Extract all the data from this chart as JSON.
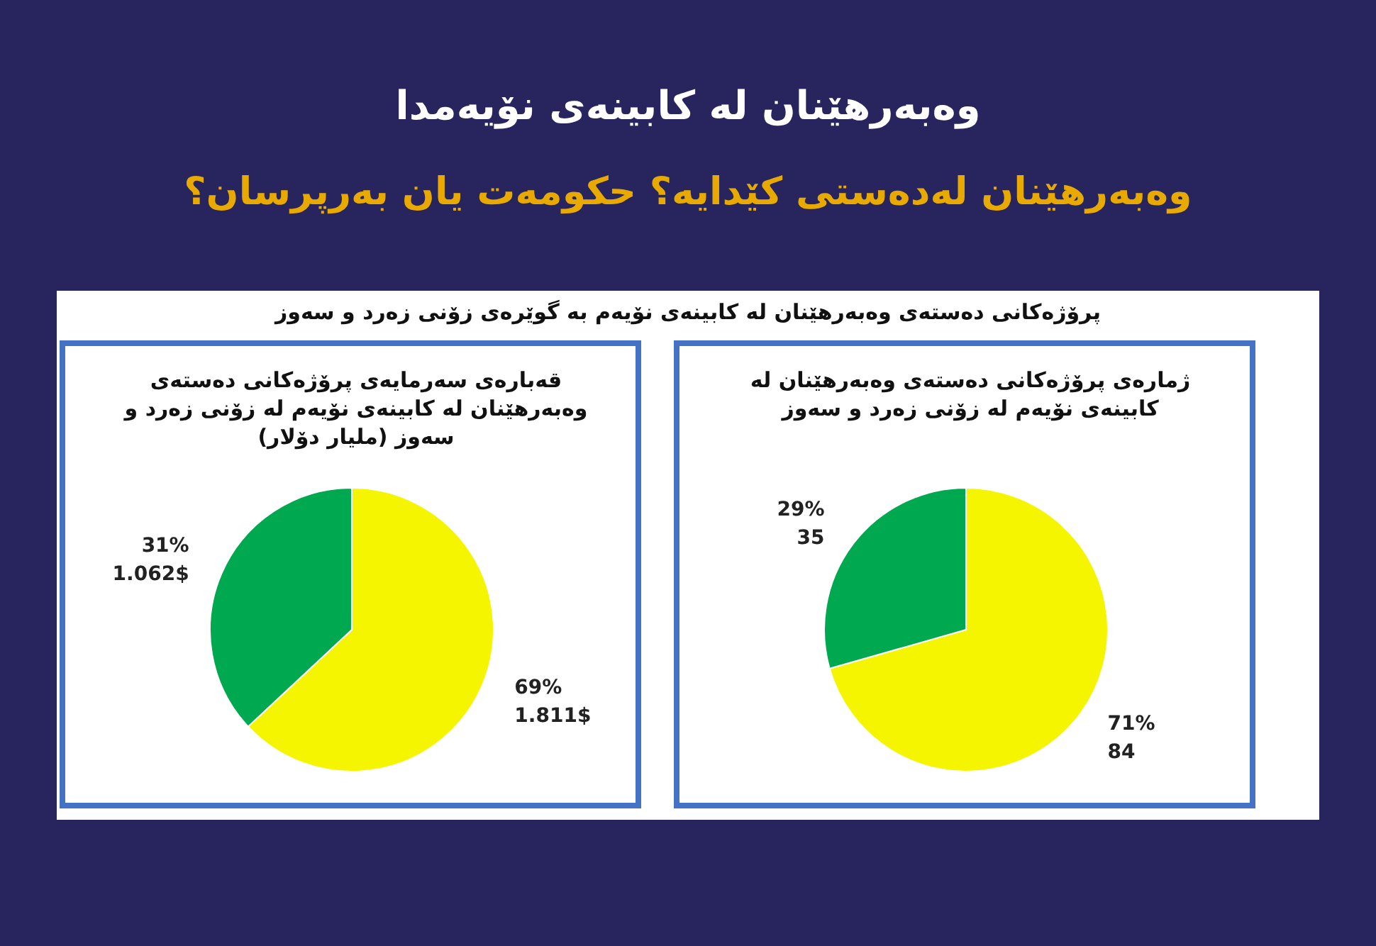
{
  "chart_data": [
    {
      "type": "other",
      "title": "وەبەرهێنان لە کابینەی نۆیەمدا",
      "subtitle": "وەبەرهێنان لەدەستی کێدایە؟ حکومەت یان بەرپرسان؟",
      "annotations": [
        "پرۆژەکانی دەستەی وەبەرهێنان لە کابینەی نۆیەم بە گوێرەی زۆنی زەرد و سەوز"
      ]
    },
    {
      "type": "pie",
      "title": "ژمارەی پرۆژەکانی دەستەی وەبەرهێنان لە کابینەی نۆیەم لە زۆنی زەرد و سەوز",
      "categories": [
        null,
        null
      ],
      "values": [
        84,
        35
      ],
      "colors": [
        "#f5f500",
        "#00a850"
      ],
      "value_labels": [
        "71%\n84",
        "29%\n35"
      ]
    },
    {
      "type": "pie",
      "title": "قەبارەی سەرمایەی  پرۆژەکانی دەستەی وەبەرهێنان لە کابینەی نۆیەم لە زۆنی زەرد و سەوز (ملیار دۆلار)",
      "categories": [
        null,
        null
      ],
      "values": [
        1.811,
        1.062
      ],
      "colors": [
        "#f5f500",
        "#00a850"
      ],
      "value_labels": [
        "69%\n1.811$",
        "31%\n1.062$"
      ]
    }
  ]
}
